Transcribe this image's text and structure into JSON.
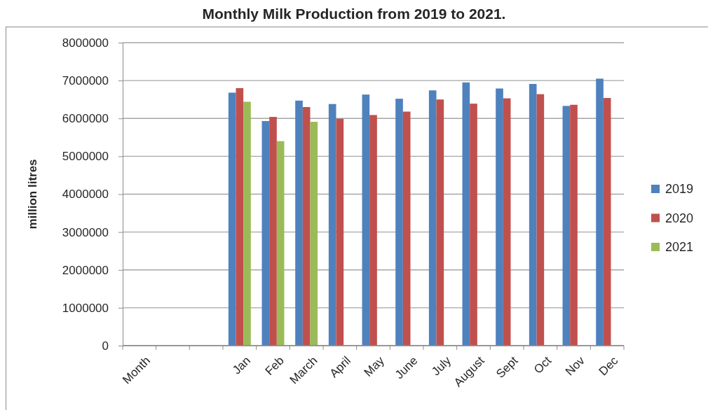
{
  "chart_data": {
    "type": "bar",
    "title": "Monthly Milk Production from 2019 to 2021.",
    "ylabel": "million litres",
    "categories": [
      "Month",
      null,
      null,
      "Jan",
      "Feb",
      "March",
      "April",
      "May",
      "June",
      "July",
      "August",
      "Sept",
      "Oct",
      "Nov",
      "Dec"
    ],
    "series": [
      {
        "name": "2019",
        "color": "#4f81bd",
        "values": [
          null,
          null,
          null,
          6680000,
          5930000,
          6470000,
          6380000,
          6630000,
          6520000,
          6740000,
          6950000,
          6790000,
          6910000,
          6330000,
          7050000
        ]
      },
      {
        "name": "2020",
        "color": "#c0504d",
        "values": [
          null,
          null,
          null,
          6800000,
          6040000,
          6300000,
          5990000,
          6090000,
          6180000,
          6500000,
          6390000,
          6530000,
          6640000,
          6360000,
          6540000
        ]
      },
      {
        "name": "2021",
        "color": "#9bbb59",
        "values": [
          null,
          null,
          null,
          6440000,
          5400000,
          5910000,
          null,
          null,
          null,
          null,
          null,
          null,
          null,
          null,
          null
        ]
      }
    ],
    "ylim": [
      0,
      8000000
    ],
    "yticks": [
      0,
      1000000,
      2000000,
      3000000,
      4000000,
      5000000,
      6000000,
      7000000,
      8000000
    ],
    "grid": "y",
    "legend": "right"
  }
}
